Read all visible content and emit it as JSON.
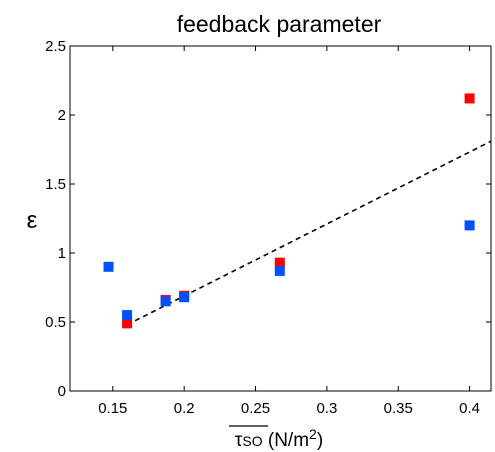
{
  "chart_data": {
    "type": "scatter",
    "title": "feedback parameter",
    "xlabel": {
      "symbol": "τ",
      "subscript": "SO",
      "unit_pre": " (N/m",
      "unit_sup": "2",
      "unit_post": ")"
    },
    "ylabel": "ε",
    "xlim": [
      0.12,
      0.415
    ],
    "ylim": [
      0,
      2.5
    ],
    "xticks": [
      "0.15",
      "0.2",
      "0.25",
      "0.3",
      "0.35",
      "0.4"
    ],
    "xtick_values": [
      0.15,
      0.2,
      0.25,
      0.3,
      0.35,
      0.4
    ],
    "yticks": [
      "0",
      "0.5",
      "1",
      "1.5",
      "2",
      "2.5"
    ],
    "ytick_values": [
      0,
      0.5,
      1,
      1.5,
      2,
      2.5
    ],
    "grid": false,
    "series": [
      {
        "color": "#ff0000",
        "marker": "square",
        "points": [
          {
            "x": 0.16,
            "y": 0.49
          },
          {
            "x": 0.187,
            "y": 0.66
          },
          {
            "x": 0.2,
            "y": 0.69
          },
          {
            "x": 0.267,
            "y": 0.93
          },
          {
            "x": 0.4,
            "y": 2.12
          }
        ]
      },
      {
        "color": "#0050ff",
        "marker": "square",
        "points": [
          {
            "x": 0.147,
            "y": 0.9
          },
          {
            "x": 0.16,
            "y": 0.55
          },
          {
            "x": 0.187,
            "y": 0.65
          },
          {
            "x": 0.2,
            "y": 0.68
          },
          {
            "x": 0.267,
            "y": 0.87
          },
          {
            "x": 0.4,
            "y": 1.2
          }
        ]
      }
    ],
    "fit_line": {
      "style": "dashed",
      "color": "#000000",
      "points": [
        {
          "x": 0.16,
          "y": 0.48
        },
        {
          "x": 0.415,
          "y": 1.81
        }
      ]
    }
  }
}
